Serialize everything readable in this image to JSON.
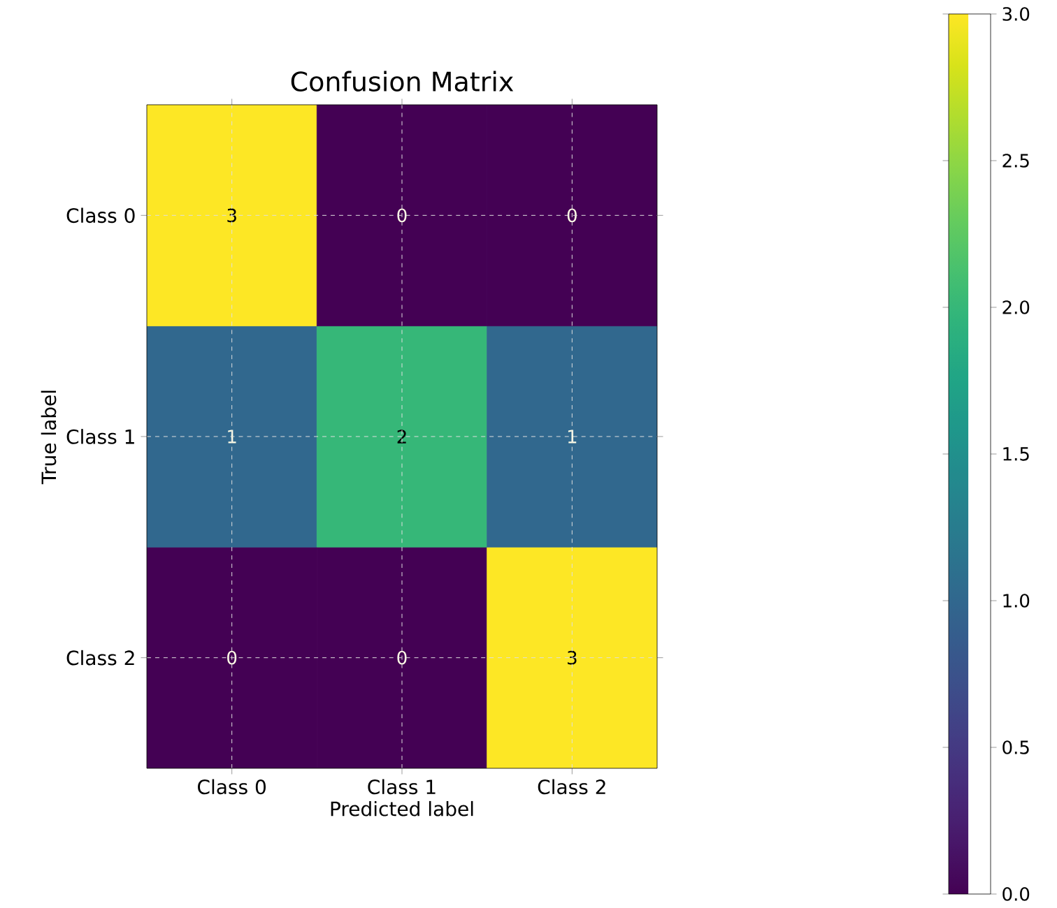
{
  "chart_data": {
    "type": "heatmap",
    "title": "Confusion Matrix",
    "xlabel": "Predicted label",
    "ylabel": "True label",
    "categories": [
      "Class 0",
      "Class 1",
      "Class 2"
    ],
    "y_categories": [
      "Class 0",
      "Class 1",
      "Class 2"
    ],
    "cells": [
      [
        3,
        0,
        0
      ],
      [
        1,
        2,
        1
      ],
      [
        0,
        0,
        3
      ]
    ],
    "clim": [
      0,
      3
    ],
    "cticks": [
      {
        "value": 0,
        "label": "0.0"
      },
      {
        "value": 0.5,
        "label": "0.5"
      },
      {
        "value": 1,
        "label": "1.0"
      },
      {
        "value": 1.5,
        "label": "1.5"
      },
      {
        "value": 2,
        "label": "2.0"
      },
      {
        "value": 2.5,
        "label": "2.5"
      },
      {
        "value": 3,
        "label": "3.0"
      }
    ],
    "grid": true,
    "data_labels": true
  }
}
